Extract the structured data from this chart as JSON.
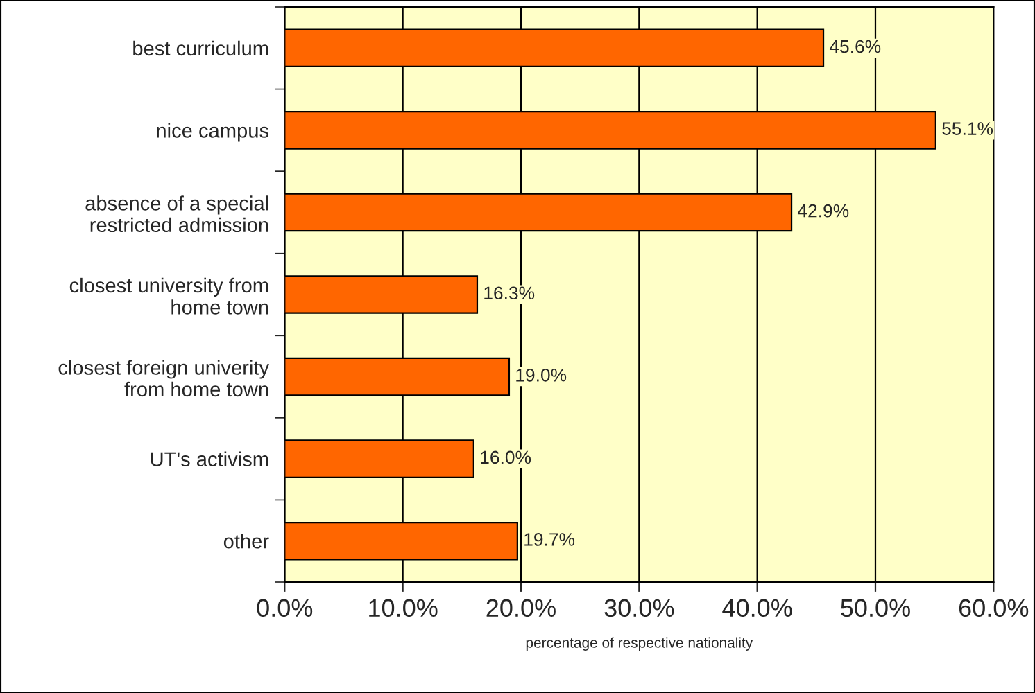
{
  "chart_data": {
    "type": "bar",
    "orientation": "horizontal",
    "xlabel": "percentage of respective nationality",
    "categories": [
      "best curriculum",
      "nice campus",
      "absence of a special\nrestricted admission",
      "closest university from\nhome town",
      "closest foreign univerity\nfrom home town",
      "UT's activism",
      "other"
    ],
    "values": [
      45.6,
      55.1,
      42.9,
      16.3,
      19.0,
      16.0,
      19.7
    ],
    "value_labels": [
      "45.6%",
      "55.1%",
      "42.9%",
      "16.3%",
      "19.0%",
      "16.0%",
      "19.7%"
    ],
    "color": "#ff6600",
    "xlim": [
      0,
      60
    ],
    "xticks": [
      {
        "value": 0,
        "label": "0.0%"
      },
      {
        "value": 10,
        "label": "10.0%"
      },
      {
        "value": 20,
        "label": "20.0%"
      },
      {
        "value": 30,
        "label": "30.0%"
      },
      {
        "value": 40,
        "label": "40.0%"
      },
      {
        "value": 50,
        "label": "50.0%"
      },
      {
        "value": 60,
        "label": "60.0%"
      }
    ],
    "grid": "x",
    "legend": false
  }
}
